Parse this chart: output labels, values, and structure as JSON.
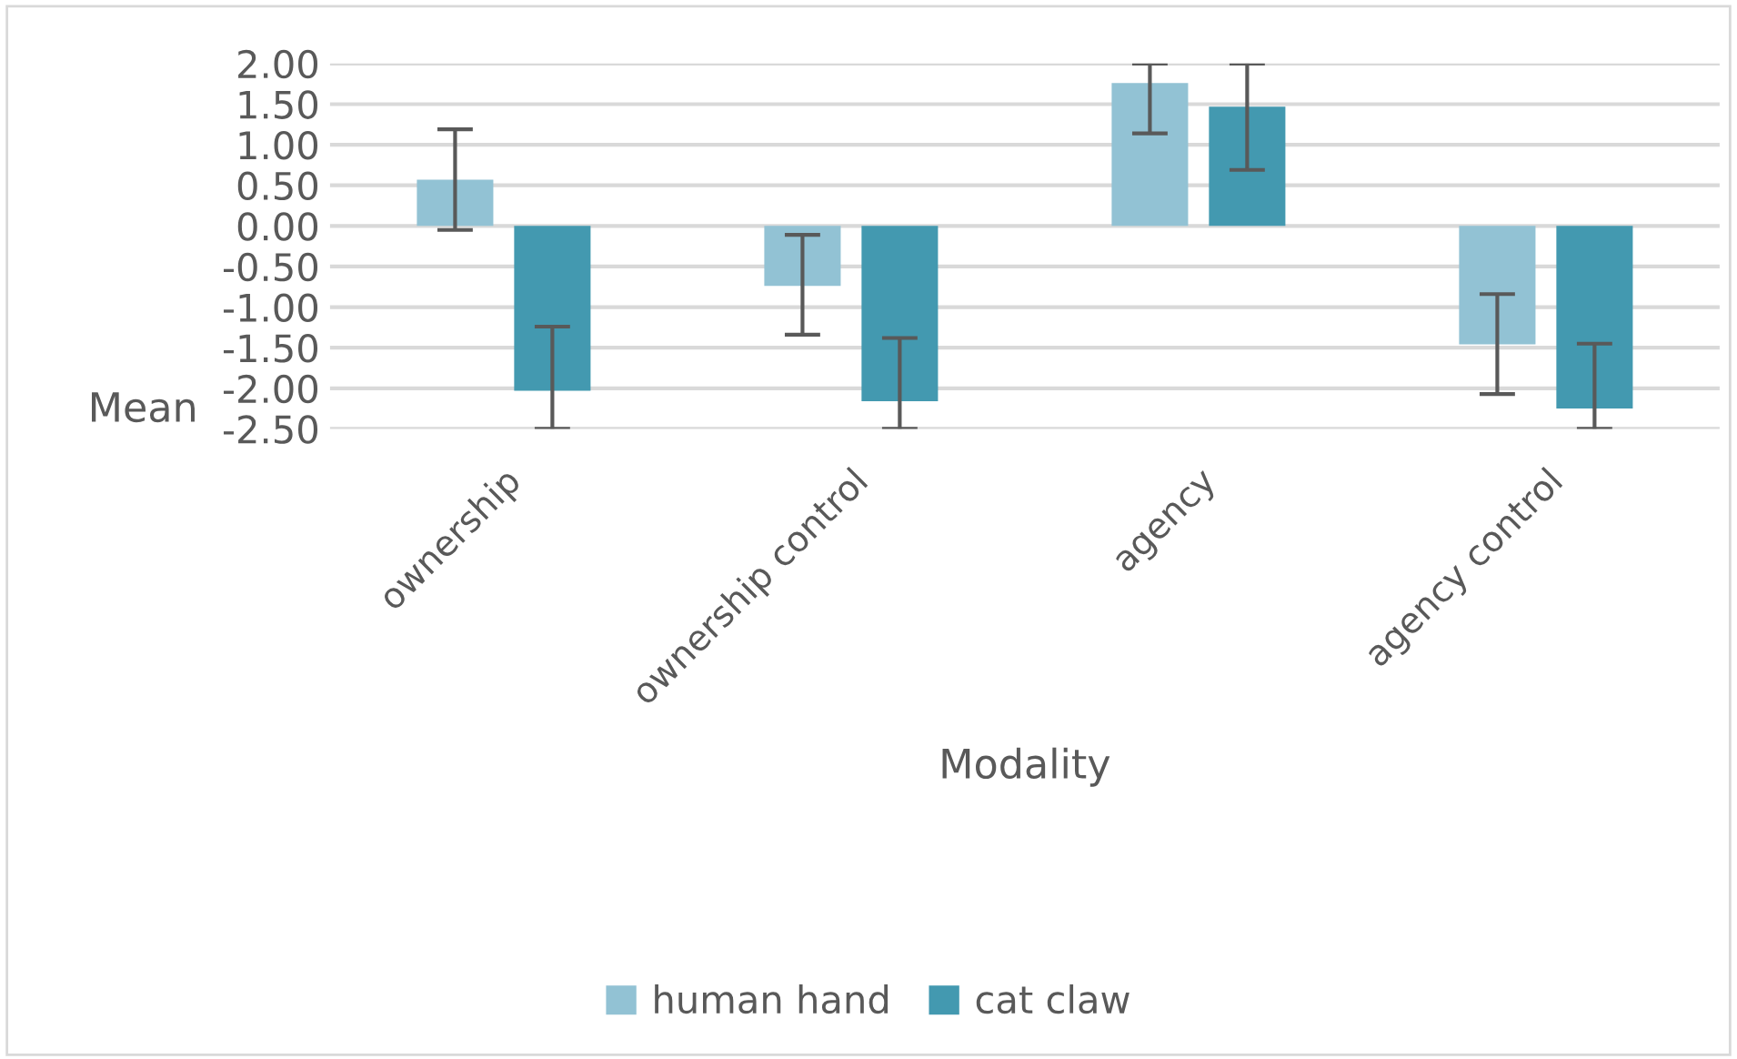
{
  "chart_data": {
    "type": "bar",
    "xlabel": "Modality",
    "ylabel": "Mean",
    "categories": [
      "ownership",
      "ownership control",
      "agency",
      "agency control"
    ],
    "series": [
      {
        "name": "human hand",
        "color": "#92c2d4",
        "values": [
          0.57,
          -0.74,
          1.76,
          -1.46
        ],
        "errors": [
          [
            -0.05,
            1.19
          ],
          [
            -1.34,
            -0.11
          ],
          [
            1.14,
            2.0
          ],
          [
            -2.07,
            -0.84
          ]
        ]
      },
      {
        "name": "cat claw",
        "color": "#4399b0",
        "values": [
          -2.03,
          -2.16,
          1.47,
          -2.25
        ],
        "errors": [
          [
            -2.5,
            -1.24
          ],
          [
            -2.5,
            -1.38
          ],
          [
            0.69,
            2.0
          ],
          [
            -2.5,
            -1.45
          ]
        ]
      }
    ],
    "ylim": [
      -2.5,
      2.0
    ],
    "yticks": [
      {
        "value": 2.0,
        "label": "2.00"
      },
      {
        "value": 1.5,
        "label": "1.50"
      },
      {
        "value": 1.0,
        "label": "1.00"
      },
      {
        "value": 0.5,
        "label": "0.50"
      },
      {
        "value": 0.0,
        "label": "0.00"
      },
      {
        "value": -0.5,
        "label": "-0.50"
      },
      {
        "value": -1.0,
        "label": "-1.00"
      },
      {
        "value": -1.5,
        "label": "-1.50"
      },
      {
        "value": -2.0,
        "label": "-2.00"
      },
      {
        "value": -2.5,
        "label": "-2.50"
      }
    ],
    "grid": "y",
    "legend": "bottom"
  }
}
